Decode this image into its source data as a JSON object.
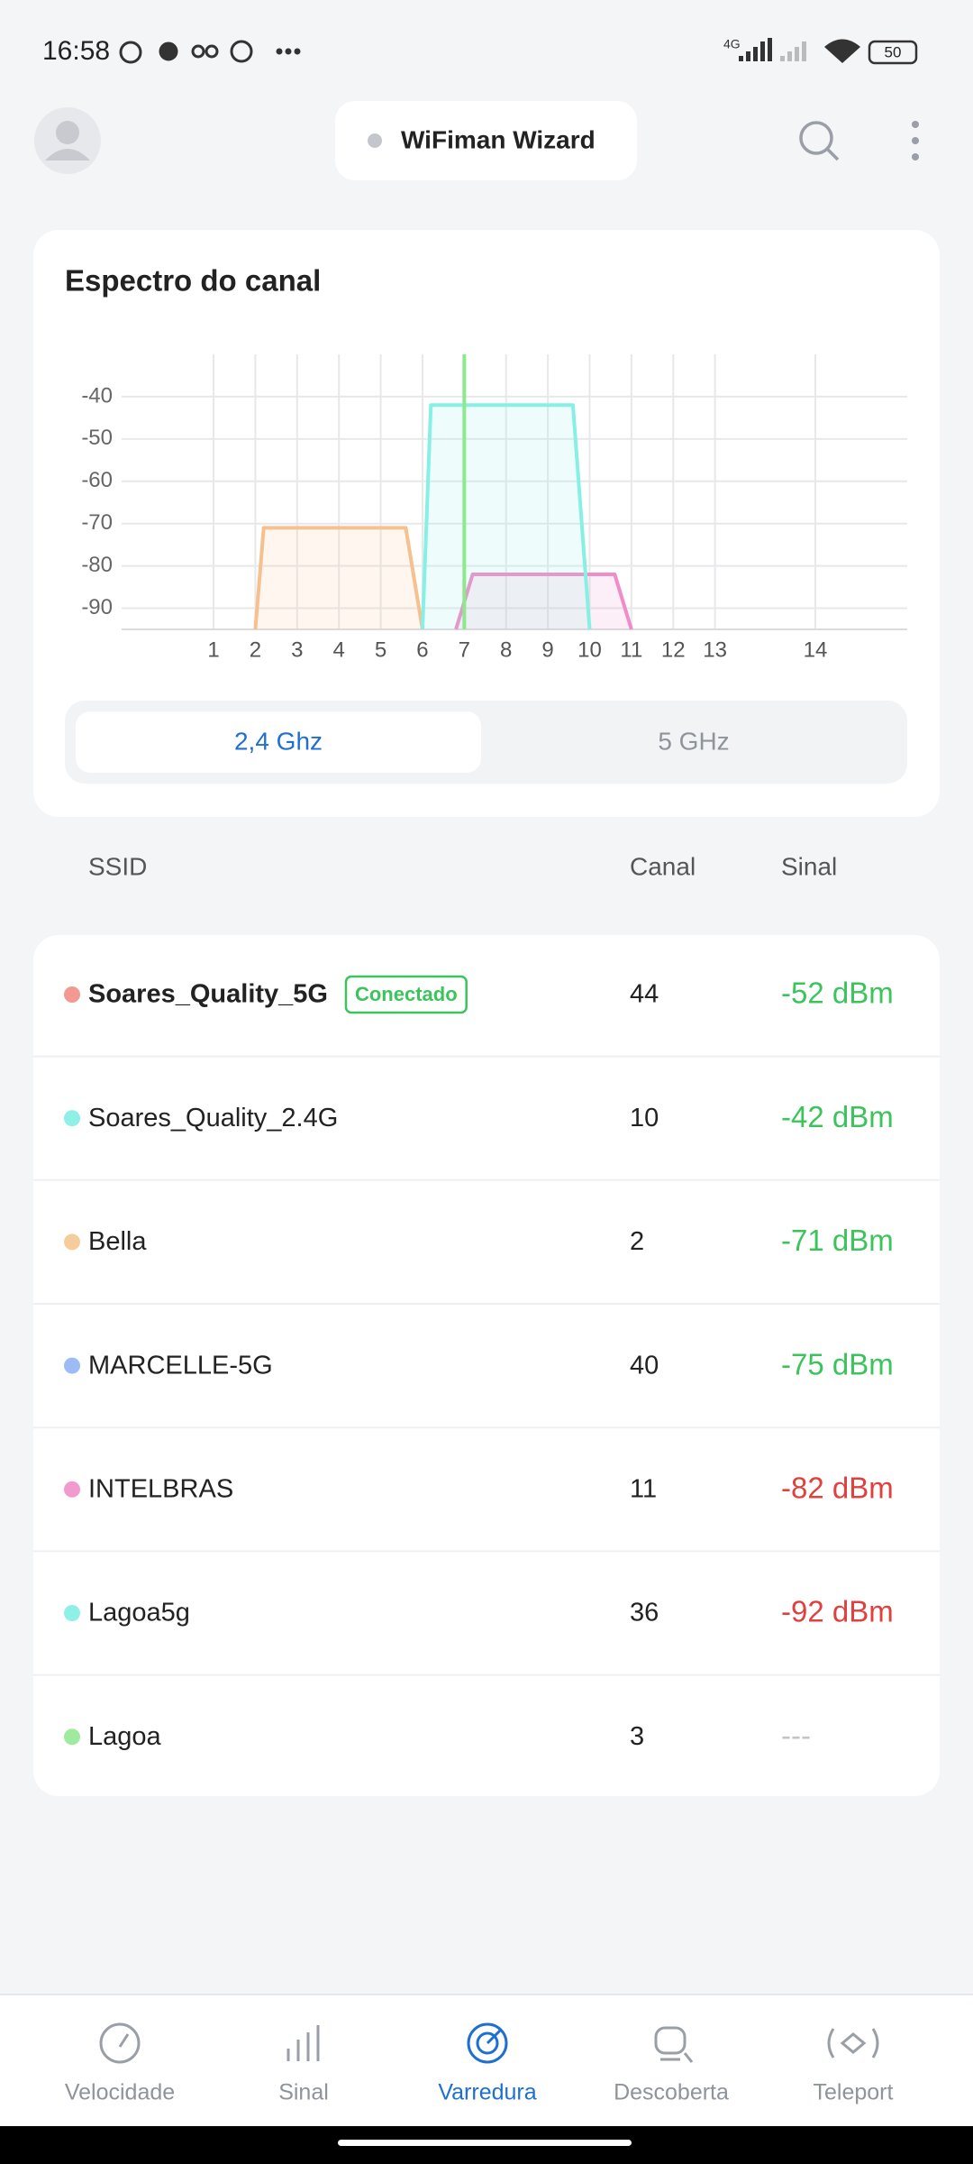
{
  "status_bar": {
    "time": "16:58",
    "network": "4G",
    "battery": "50"
  },
  "header": {
    "title": "WiFiman Wizard"
  },
  "spectrum_card": {
    "title": "Espectro do canal",
    "tabs": [
      "2,4 Ghz",
      "5 GHz"
    ]
  },
  "chart_data": {
    "type": "area",
    "xlim": [
      2401,
      2495
    ],
    "ylim": [
      -95,
      -30
    ],
    "xticks": [
      {
        "value": 2412,
        "label": "1"
      },
      {
        "value": 2417,
        "label": "2"
      },
      {
        "value": 2422,
        "label": "3"
      },
      {
        "value": 2427,
        "label": "4"
      },
      {
        "value": 2432,
        "label": "5"
      },
      {
        "value": 2437,
        "label": "6"
      },
      {
        "value": 2442,
        "label": "7"
      },
      {
        "value": 2447,
        "label": "8"
      },
      {
        "value": 2452,
        "label": "9"
      },
      {
        "value": 2457,
        "label": "10"
      },
      {
        "value": 2462,
        "label": "11"
      },
      {
        "value": 2467,
        "label": "12"
      },
      {
        "value": 2472,
        "label": "13"
      },
      {
        "value": 2484,
        "label": "14"
      }
    ],
    "yticks": [
      -90,
      -80,
      -70,
      -60,
      -50,
      -40
    ],
    "grid": true,
    "series": [
      {
        "color": "#f6c08f",
        "x": [
          2417,
          2418,
          2435,
          2437
        ],
        "values": [
          -95,
          -71,
          -71,
          -95
        ]
      },
      {
        "color": "#f08cc8",
        "x": [
          2441,
          2443,
          2460,
          2462
        ],
        "values": [
          -95,
          -82,
          -82,
          -95
        ]
      },
      {
        "color": "#86f0e4",
        "x": [
          2437,
          2438,
          2455,
          2457
        ],
        "values": [
          -95,
          -42,
          -42,
          -95
        ]
      }
    ],
    "marker": {
      "x": 2442,
      "color": "#8ee88e"
    }
  },
  "table": {
    "columns": [
      "SSID",
      "Canal",
      "Sinal"
    ],
    "rows": [
      {
        "ssid": "Soares_Quality_5G",
        "badge": "Conectado",
        "channel": 44,
        "signal": "-52 dBm",
        "color": "#f29a92",
        "signal_color": "#3cc45c"
      },
      {
        "ssid": "Soares_Quality_2.4G",
        "channel": 10,
        "signal": "-42 dBm",
        "color": "#8ef0e6",
        "signal_color": "#3cc45c"
      },
      {
        "ssid": "Bella",
        "channel": 2,
        "signal": "-71 dBm",
        "color": "#f7cc9c",
        "signal_color": "#3cc45c"
      },
      {
        "ssid": "MARCELLE-5G",
        "channel": 40,
        "signal": "-75 dBm",
        "color": "#9dbcf5",
        "signal_color": "#3cc45c"
      },
      {
        "ssid": "INTELBRAS",
        "channel": 11,
        "signal": "-82 dBm",
        "color": "#f29ad0",
        "signal_color": "#e0403e"
      },
      {
        "ssid": "Lagoa5g",
        "channel": 36,
        "signal": "-92 dBm",
        "color": "#8ef0e6",
        "signal_color": "#e0403e"
      },
      {
        "ssid": "Lagoa",
        "channel": 3,
        "signal": "---",
        "color": "#9eea9e",
        "signal_color": "#c4c4c4"
      }
    ]
  },
  "bottom_nav": {
    "items": [
      "Velocidade",
      "Sinal",
      "Varredura",
      "Descoberta",
      "Teleport"
    ]
  }
}
